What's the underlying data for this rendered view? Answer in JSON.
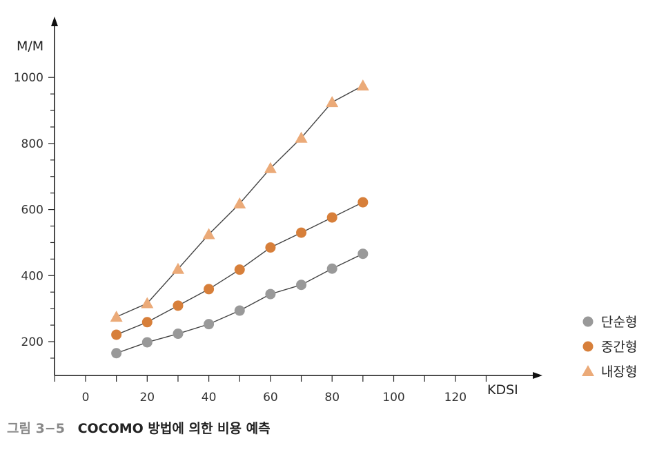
{
  "chart_data": {
    "type": "line",
    "ylabel": "M/M",
    "xlabel": "KDSI",
    "x_ticks": [
      0,
      20,
      40,
      60,
      80,
      100,
      120
    ],
    "y_ticks": [
      200,
      400,
      600,
      800,
      1000
    ],
    "xlim": [
      -10,
      138
    ],
    "ylim": [
      110,
      1040
    ],
    "x": [
      10,
      20,
      30,
      40,
      50,
      60,
      70,
      80,
      90
    ],
    "series": [
      {
        "name": "단순형",
        "marker": "circle",
        "color": "#999999",
        "values": [
          165,
          198,
          224,
          253,
          294,
          344,
          372,
          421,
          466
        ]
      },
      {
        "name": "중간형",
        "marker": "circle",
        "color": "#D77F3A",
        "values": [
          221,
          259,
          309,
          359,
          418,
          485,
          530,
          576,
          622
        ]
      },
      {
        "name": "내장형",
        "marker": "triangle",
        "color": "#EBAA78",
        "values": [
          275,
          316,
          420,
          525,
          618,
          725,
          817,
          925,
          975
        ]
      }
    ],
    "legend_position": "right",
    "grid": false
  },
  "caption": {
    "number": "그림 3−5",
    "text": "COCOMO 방법에 의한 비용 예측"
  }
}
